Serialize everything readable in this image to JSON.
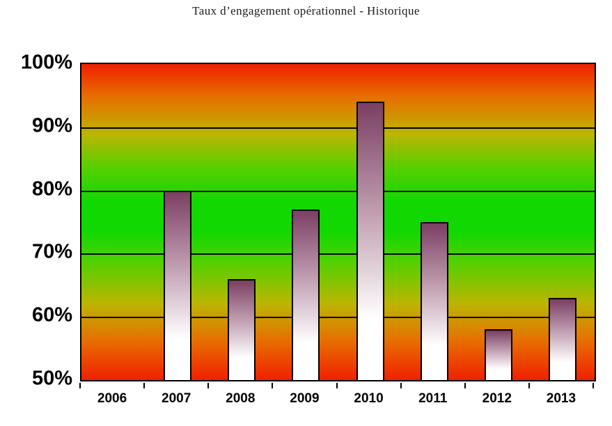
{
  "chart_data": {
    "type": "bar",
    "title": "Taux d’engagement opérationnel - Historique",
    "categories": [
      "2006",
      "2007",
      "2008",
      "2009",
      "2010",
      "2011",
      "2012",
      "2013"
    ],
    "values": [
      null,
      80,
      66,
      77,
      94,
      75,
      58,
      63
    ],
    "xlabel": "",
    "ylabel": "",
    "ylim": [
      50,
      100
    ],
    "yticks": [
      {
        "label": "100%",
        "value": 100
      },
      {
        "label": "90%",
        "value": 90
      },
      {
        "label": "80%",
        "value": 80
      },
      {
        "label": "70%",
        "value": 70
      },
      {
        "label": "60%",
        "value": 60
      },
      {
        "label": "50%",
        "value": 50
      }
    ],
    "grid": true,
    "legend": false,
    "colors": {
      "axis": "#000000",
      "bar_top": "#7b3f63",
      "bar_mid": "#c19fb1",
      "bar_bottom": "#ffffff",
      "plot_gradient_stops": [
        "#f02000 0%",
        "#e86c00 10%",
        "#bdb400 22%",
        "#55d000 33%",
        "#10d800 44%",
        "#10d800 53%",
        "#55d000 63%",
        "#bdb400 76%",
        "#e86c00 88%",
        "#f02000 100%"
      ]
    }
  }
}
